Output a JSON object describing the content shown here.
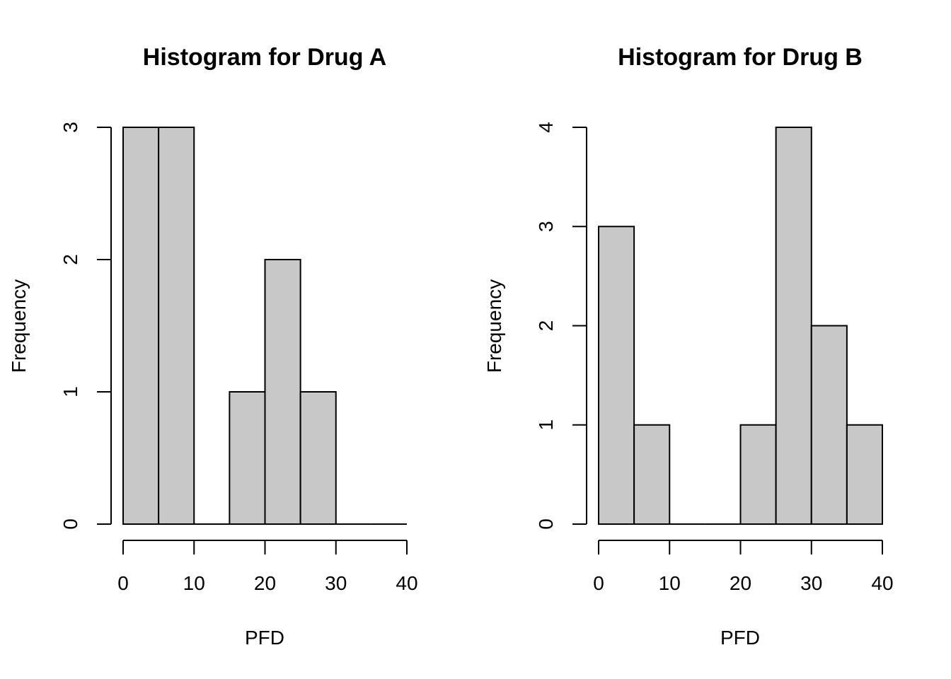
{
  "chart_data": [
    {
      "type": "bar",
      "title": "Histogram for Drug A",
      "xlabel": "PFD",
      "ylabel": "Frequency",
      "bins": [
        [
          0,
          5
        ],
        [
          5,
          10
        ],
        [
          10,
          15
        ],
        [
          15,
          20
        ],
        [
          20,
          25
        ],
        [
          25,
          30
        ],
        [
          30,
          35
        ],
        [
          35,
          40
        ]
      ],
      "values": [
        3,
        3,
        0,
        1,
        2,
        1,
        0,
        0
      ],
      "xlim": [
        0,
        40
      ],
      "ylim": [
        0,
        3
      ],
      "xticks": [
        0,
        10,
        20,
        30,
        40
      ],
      "yticks": [
        0,
        1,
        2,
        3
      ],
      "grid": false
    },
    {
      "type": "bar",
      "title": "Histogram for Drug B",
      "xlabel": "PFD",
      "ylabel": "Frequency",
      "bins": [
        [
          0,
          5
        ],
        [
          5,
          10
        ],
        [
          10,
          15
        ],
        [
          15,
          20
        ],
        [
          20,
          25
        ],
        [
          25,
          30
        ],
        [
          30,
          35
        ],
        [
          35,
          40
        ]
      ],
      "values": [
        3,
        1,
        0,
        0,
        1,
        4,
        2,
        1
      ],
      "xlim": [
        0,
        40
      ],
      "ylim": [
        0,
        4
      ],
      "xticks": [
        0,
        10,
        20,
        30,
        40
      ],
      "yticks": [
        0,
        1,
        2,
        3,
        4
      ],
      "grid": false
    }
  ]
}
